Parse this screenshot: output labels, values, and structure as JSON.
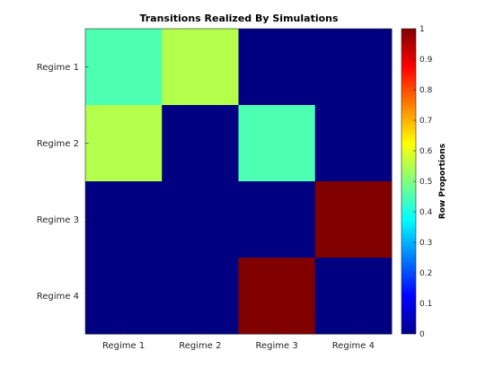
{
  "chart_data": {
    "type": "heatmap",
    "title": "Transitions Realized By Simulations",
    "rows": [
      "Regime 1",
      "Regime 2",
      "Regime 3",
      "Regime 4"
    ],
    "columns": [
      "Regime 1",
      "Regime 2",
      "Regime 3",
      "Regime 4"
    ],
    "values": [
      [
        0.45,
        0.55,
        0,
        0
      ],
      [
        0.55,
        0,
        0.45,
        0
      ],
      [
        0,
        0,
        0,
        1
      ],
      [
        0,
        0,
        1,
        0
      ]
    ],
    "colormap": "jet",
    "colorbar": {
      "label": "Row Proportions",
      "range": [
        0,
        1
      ],
      "ticks": [
        "0",
        "0.1",
        "0.2",
        "0.3",
        "0.4",
        "0.5",
        "0.6",
        "0.7",
        "0.8",
        "0.9",
        "1"
      ]
    }
  }
}
